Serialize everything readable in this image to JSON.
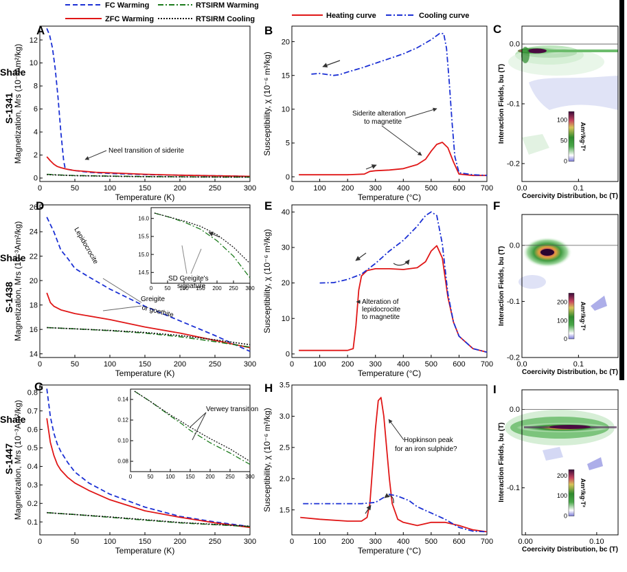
{
  "colors": {
    "fc": "#1a2fd4",
    "zfc": "#e01616",
    "rtw": "#1a7a1a",
    "rtc": "#111111",
    "heat": "#e01616",
    "cool": "#1a2fd4"
  },
  "legend_top": {
    "fc": "FC Warming",
    "zfc": "ZFC Warming",
    "rtw": "RTSIRM Warming",
    "rtc": "RTSIRM Cooling"
  },
  "legend_mid": {
    "heat": "Heating curve",
    "cool": "Cooling curve"
  },
  "rows": [
    {
      "label1": "Shale",
      "label2": "S-1341"
    },
    {
      "label1": "Shale",
      "label2": "S-1438"
    },
    {
      "label1": "Shale",
      "label2": "S-1447"
    }
  ],
  "chart_data": [
    {
      "id": "A",
      "type": "line",
      "xlabel": "Temperature (K)",
      "ylabel": "Magnetization, Mrs (10⁻³Am²/kg)",
      "xlim": [
        0,
        300
      ],
      "ylim": [
        -0.3,
        13.2
      ],
      "xticks": [
        0,
        50,
        100,
        150,
        200,
        250,
        300
      ],
      "yticks": [
        0,
        2,
        4,
        6,
        8,
        10,
        12
      ],
      "annotations": [
        "Neel transition of siderite"
      ],
      "series": [
        {
          "key": "fc",
          "name": "FC Warming",
          "x": [
            10,
            14,
            18,
            22,
            26,
            30,
            34,
            36,
            40,
            50,
            70,
            100,
            150,
            200,
            250,
            300
          ],
          "y": [
            13.0,
            12.4,
            11.3,
            9.5,
            7.0,
            4.0,
            1.5,
            0.9,
            0.75,
            0.65,
            0.5,
            0.4,
            0.3,
            0.25,
            0.2,
            0.15
          ]
        },
        {
          "key": "zfc",
          "name": "ZFC Warming",
          "x": [
            10,
            15,
            20,
            25,
            30,
            35,
            40,
            50,
            60,
            80,
            100,
            150,
            200,
            250,
            300
          ],
          "y": [
            1.85,
            1.5,
            1.2,
            1.0,
            0.9,
            0.82,
            0.75,
            0.65,
            0.6,
            0.5,
            0.45,
            0.33,
            0.25,
            0.2,
            0.15
          ]
        },
        {
          "key": "rtw",
          "name": "RTSIRM Warming",
          "x": [
            10,
            30,
            50,
            100,
            150,
            200,
            250,
            300
          ],
          "y": [
            0.33,
            0.26,
            0.22,
            0.17,
            0.13,
            0.11,
            0.09,
            0.08
          ]
        },
        {
          "key": "rtc",
          "name": "RTSIRM Cooling",
          "x": [
            10,
            30,
            50,
            100,
            150,
            200,
            250,
            300
          ],
          "y": [
            0.3,
            0.25,
            0.21,
            0.16,
            0.12,
            0.1,
            0.09,
            0.08
          ]
        }
      ]
    },
    {
      "id": "B",
      "type": "line",
      "xlabel": "Temperature (°C)",
      "ylabel": "Susceptibility, χ (10⁻⁶ m³/kg)",
      "xlim": [
        0,
        700
      ],
      "ylim": [
        -0.7,
        22.3
      ],
      "xticks": [
        0,
        100,
        200,
        300,
        400,
        500,
        600,
        700
      ],
      "yticks": [
        0,
        5,
        10,
        15,
        20
      ],
      "annotations": [
        "Siderite alteration",
        "to magnetite"
      ],
      "series": [
        {
          "key": "heat",
          "name": "Heating curve",
          "x": [
            25,
            100,
            200,
            260,
            280,
            300,
            350,
            400,
            450,
            480,
            500,
            520,
            540,
            560,
            580,
            600,
            650,
            700
          ],
          "y": [
            0.3,
            0.3,
            0.3,
            0.4,
            0.8,
            0.9,
            1.0,
            1.2,
            1.8,
            2.6,
            3.8,
            4.8,
            5.1,
            4.3,
            2.2,
            0.4,
            0.2,
            0.2
          ]
        },
        {
          "key": "cool",
          "name": "Cooling curve",
          "x": [
            70,
            100,
            150,
            170,
            200,
            250,
            300,
            350,
            400,
            450,
            500,
            530,
            545,
            555,
            565,
            575,
            585,
            600,
            650,
            700
          ],
          "y": [
            15.2,
            15.3,
            15.0,
            15.1,
            15.5,
            16.1,
            16.8,
            17.5,
            18.2,
            19.1,
            20.3,
            21.2,
            21.2,
            19.0,
            14.0,
            8.0,
            3.0,
            0.6,
            0.3,
            0.2
          ]
        }
      ]
    },
    {
      "id": "C",
      "type": "heatmap",
      "xlabel": "Coercivity Distribution, bc (T)",
      "ylabel": "Interaction Fields, bu (T)",
      "xlim": [
        0,
        0.17
      ],
      "ylim": [
        -0.23,
        0.03
      ],
      "xticks": [
        0.0,
        0.1
      ],
      "xticklabels": [
        "0.0",
        "0.1"
      ],
      "yticks": [
        0.0,
        -0.1,
        -0.2
      ],
      "yticklabels": [
        "0.0",
        "-0.1",
        "-0.2"
      ],
      "colorbar": {
        "ticks": [
          0,
          50,
          100
        ],
        "max": 120,
        "label": "Am²/kg·T²"
      }
    },
    {
      "id": "D",
      "type": "line",
      "xlabel": "Temperature (K)",
      "ylabel": "Magnetization, Mrs (10⁻³Am²/kg)",
      "xlim": [
        0,
        300
      ],
      "ylim": [
        13.7,
        26.2
      ],
      "xticks": [
        0,
        50,
        100,
        150,
        200,
        250,
        300
      ],
      "yticks": [
        14,
        16,
        18,
        20,
        22,
        24,
        26
      ],
      "annotations": [
        "Lepidocrocite",
        "Greigite",
        "or goethite"
      ],
      "series": [
        {
          "key": "fc",
          "name": "FC Warming",
          "x": [
            10,
            20,
            30,
            40,
            50,
            70,
            100,
            150,
            200,
            250,
            300
          ],
          "y": [
            25.2,
            24.0,
            22.5,
            21.8,
            21.0,
            20.3,
            19.3,
            17.9,
            16.7,
            15.5,
            14.2
          ]
        },
        {
          "key": "zfc",
          "name": "ZFC Warming",
          "x": [
            10,
            15,
            20,
            30,
            50,
            100,
            150,
            200,
            250,
            300
          ],
          "y": [
            19.0,
            18.2,
            17.9,
            17.6,
            17.3,
            16.8,
            16.2,
            15.7,
            15.1,
            14.5
          ]
        },
        {
          "key": "rtw",
          "name": "RTSIRM Warming",
          "x": [
            10,
            50,
            100,
            150,
            200,
            250,
            300
          ],
          "y": [
            16.15,
            16.05,
            15.9,
            15.7,
            15.4,
            15.0,
            14.55
          ]
        },
        {
          "key": "rtc",
          "name": "RTSIRM Cooling",
          "x": [
            10,
            50,
            100,
            150,
            200,
            250,
            300
          ],
          "y": [
            16.15,
            16.05,
            15.92,
            15.75,
            15.5,
            15.15,
            14.75
          ]
        }
      ]
    },
    {
      "id": "D-inset",
      "type": "line",
      "xlim": [
        0,
        300
      ],
      "ylim": [
        14.2,
        16.3
      ],
      "xticks": [
        0,
        50,
        100,
        150,
        200,
        250,
        300
      ],
      "yticks": [
        14.5,
        15.0,
        15.5,
        16.0
      ],
      "yticklabels": [
        "14.5",
        "15.0",
        "15.5",
        "16.0"
      ],
      "annotations": [
        "SD Greigite's",
        "signature"
      ],
      "series": [
        {
          "key": "rtw",
          "name": "RTSIRM Warming",
          "x": [
            10,
            50,
            100,
            150,
            200,
            250,
            300
          ],
          "y": [
            16.15,
            16.05,
            15.9,
            15.7,
            15.38,
            14.95,
            14.35
          ]
        },
        {
          "key": "rtc",
          "name": "RTSIRM Cooling",
          "x": [
            10,
            50,
            100,
            150,
            200,
            250,
            300
          ],
          "y": [
            16.15,
            16.05,
            15.93,
            15.78,
            15.55,
            15.2,
            14.75
          ]
        }
      ]
    },
    {
      "id": "E",
      "type": "line",
      "xlabel": "Temperature (°C)",
      "ylabel": "Susceptibility, χ (10⁻⁶ m³/kg)",
      "xlim": [
        0,
        700
      ],
      "ylim": [
        -1,
        42
      ],
      "xticks": [
        0,
        100,
        200,
        300,
        400,
        500,
        600,
        700
      ],
      "yticks": [
        0,
        10,
        20,
        30,
        40
      ],
      "annotations": [
        "Alteration of",
        "lepidocrocite",
        "to magnetite"
      ],
      "series": [
        {
          "key": "heat",
          "name": "Heating curve",
          "x": [
            25,
            100,
            200,
            220,
            230,
            240,
            250,
            270,
            300,
            350,
            400,
            450,
            480,
            500,
            520,
            540,
            560,
            580,
            600,
            650,
            700
          ],
          "y": [
            1,
            1,
            1,
            1.5,
            8,
            18,
            22,
            23.5,
            24,
            24,
            23.8,
            24.3,
            26,
            29,
            30.5,
            27,
            16,
            9,
            5,
            1.5,
            0.5
          ]
        },
        {
          "key": "cool",
          "name": "Cooling curve",
          "x": [
            100,
            150,
            200,
            250,
            300,
            350,
            400,
            450,
            480,
            500,
            520,
            540,
            560,
            580,
            600,
            650,
            700
          ],
          "y": [
            20,
            20.1,
            21,
            22.5,
            25.5,
            29,
            32,
            36,
            39,
            40,
            39,
            31,
            17,
            9,
            5,
            1.5,
            0.5
          ]
        }
      ]
    },
    {
      "id": "F",
      "type": "heatmap",
      "xlabel": "Coercivity Distribution, bc (T)",
      "ylabel": "Interaction Fields, bu (T)",
      "xlim": [
        0,
        0.17
      ],
      "ylim": [
        -0.2,
        0.055
      ],
      "xticks": [
        0.0,
        0.1
      ],
      "xticklabels": [
        "0.0",
        "0.1"
      ],
      "yticks": [
        0.0,
        -0.1,
        -0.2
      ],
      "yticklabels": [
        "0.0",
        "-0.1",
        "-0.2"
      ],
      "colorbar": {
        "ticks": [
          0,
          100,
          200
        ],
        "max": 250,
        "label": "Am²/kg·T²"
      }
    },
    {
      "id": "G",
      "type": "line",
      "xlabel": "Temperature (K)",
      "ylabel": "Magnetization, Mrs (10⁻³Am²/kg)",
      "xlim": [
        0,
        300
      ],
      "ylim": [
        0.03,
        0.84
      ],
      "xticks": [
        0,
        50,
        100,
        150,
        200,
        250,
        300
      ],
      "yticks": [
        0.1,
        0.2,
        0.3,
        0.4,
        0.5,
        0.6,
        0.7,
        0.8
      ],
      "yticklabels": [
        "0.1",
        "0.2",
        "0.3",
        "0.4",
        "0.5",
        "0.6",
        "0.7",
        "0.8"
      ],
      "series": [
        {
          "key": "fc",
          "name": "FC Warming",
          "x": [
            10,
            15,
            20,
            25,
            30,
            40,
            50,
            70,
            100,
            150,
            200,
            250,
            300
          ],
          "y": [
            0.82,
            0.67,
            0.58,
            0.52,
            0.48,
            0.42,
            0.37,
            0.31,
            0.25,
            0.18,
            0.13,
            0.1,
            0.075
          ]
        },
        {
          "key": "zfc",
          "name": "ZFC Warming",
          "x": [
            10,
            15,
            20,
            25,
            30,
            40,
            50,
            70,
            100,
            150,
            200,
            250,
            300
          ],
          "y": [
            0.66,
            0.53,
            0.46,
            0.41,
            0.38,
            0.34,
            0.31,
            0.27,
            0.22,
            0.16,
            0.125,
            0.095,
            0.07
          ]
        },
        {
          "key": "rtw",
          "name": "RTSIRM Warming",
          "x": [
            10,
            50,
            100,
            150,
            200,
            250,
            300
          ],
          "y": [
            0.15,
            0.14,
            0.125,
            0.11,
            0.095,
            0.085,
            0.075
          ]
        },
        {
          "key": "rtc",
          "name": "RTSIRM Cooling",
          "x": [
            10,
            50,
            100,
            150,
            200,
            250,
            300
          ],
          "y": [
            0.15,
            0.14,
            0.127,
            0.112,
            0.097,
            0.087,
            0.077
          ]
        }
      ]
    },
    {
      "id": "G-inset",
      "type": "line",
      "xlim": [
        0,
        300
      ],
      "ylim": [
        0.07,
        0.15
      ],
      "xticks": [
        0,
        50,
        100,
        150,
        200,
        250,
        300
      ],
      "yticks": [
        0.08,
        0.1,
        0.12,
        0.14
      ],
      "yticklabels": [
        "0.08",
        "0.10",
        "0.12",
        "0.14"
      ],
      "annotations": [
        "Verwey transition"
      ],
      "series": [
        {
          "key": "rtw",
          "name": "RTSIRM Warming",
          "x": [
            10,
            50,
            100,
            130,
            150,
            200,
            250,
            300
          ],
          "y": [
            0.148,
            0.138,
            0.124,
            0.116,
            0.11,
            0.098,
            0.088,
            0.077
          ]
        },
        {
          "key": "rtc",
          "name": "RTSIRM Cooling",
          "x": [
            10,
            50,
            100,
            130,
            150,
            200,
            250,
            300
          ],
          "y": [
            0.148,
            0.138,
            0.125,
            0.118,
            0.113,
            0.102,
            0.092,
            0.08
          ]
        }
      ]
    },
    {
      "id": "H",
      "type": "line",
      "xlabel": "Temperature (°C)",
      "ylabel": "Susceptibility, χ (10⁻⁶ m³/kg)",
      "xlim": [
        0,
        700
      ],
      "ylim": [
        1.1,
        3.5
      ],
      "xticks": [
        0,
        100,
        200,
        300,
        400,
        500,
        600,
        700
      ],
      "yticks": [
        1.5,
        2.0,
        2.5,
        3.0,
        3.5
      ],
      "yticklabels": [
        "1.5",
        "2.0",
        "2.5",
        "3.0",
        "3.5"
      ],
      "annotations": [
        "Hopkinson peak",
        "for an iron sulphide?"
      ],
      "series": [
        {
          "key": "heat",
          "name": "Heating curve",
          "x": [
            30,
            100,
            200,
            250,
            270,
            280,
            290,
            300,
            310,
            320,
            330,
            340,
            350,
            360,
            380,
            400,
            450,
            500,
            550,
            600,
            650,
            700
          ],
          "y": [
            1.38,
            1.35,
            1.32,
            1.32,
            1.38,
            1.6,
            2.2,
            2.8,
            3.25,
            3.3,
            3.0,
            2.5,
            2.0,
            1.6,
            1.35,
            1.3,
            1.25,
            1.3,
            1.3,
            1.25,
            1.18,
            1.15
          ]
        },
        {
          "key": "cool",
          "name": "Cooling curve",
          "x": [
            40,
            100,
            200,
            250,
            300,
            330,
            350,
            380,
            420,
            450,
            500,
            550,
            600,
            650,
            700
          ],
          "y": [
            1.6,
            1.6,
            1.6,
            1.6,
            1.62,
            1.7,
            1.75,
            1.72,
            1.65,
            1.55,
            1.45,
            1.35,
            1.22,
            1.16,
            1.15
          ]
        }
      ]
    },
    {
      "id": "I",
      "type": "heatmap",
      "xlabel": "Coercivity Distribution, bc (T)",
      "ylabel": "Interaction Fields, bu (T)",
      "xlim": [
        -0.005,
        0.13
      ],
      "ylim": [
        -0.16,
        0.025
      ],
      "xticks": [
        0.0,
        0.1
      ],
      "xticklabels": [
        "0.00",
        "0.10"
      ],
      "yticks": [
        0.0,
        -0.1
      ],
      "yticklabels": [
        "0.0",
        "-0.1"
      ],
      "colorbar": {
        "ticks": [
          0,
          100,
          200
        ],
        "max": 230,
        "label": "Am²/kg·T²"
      }
    }
  ]
}
